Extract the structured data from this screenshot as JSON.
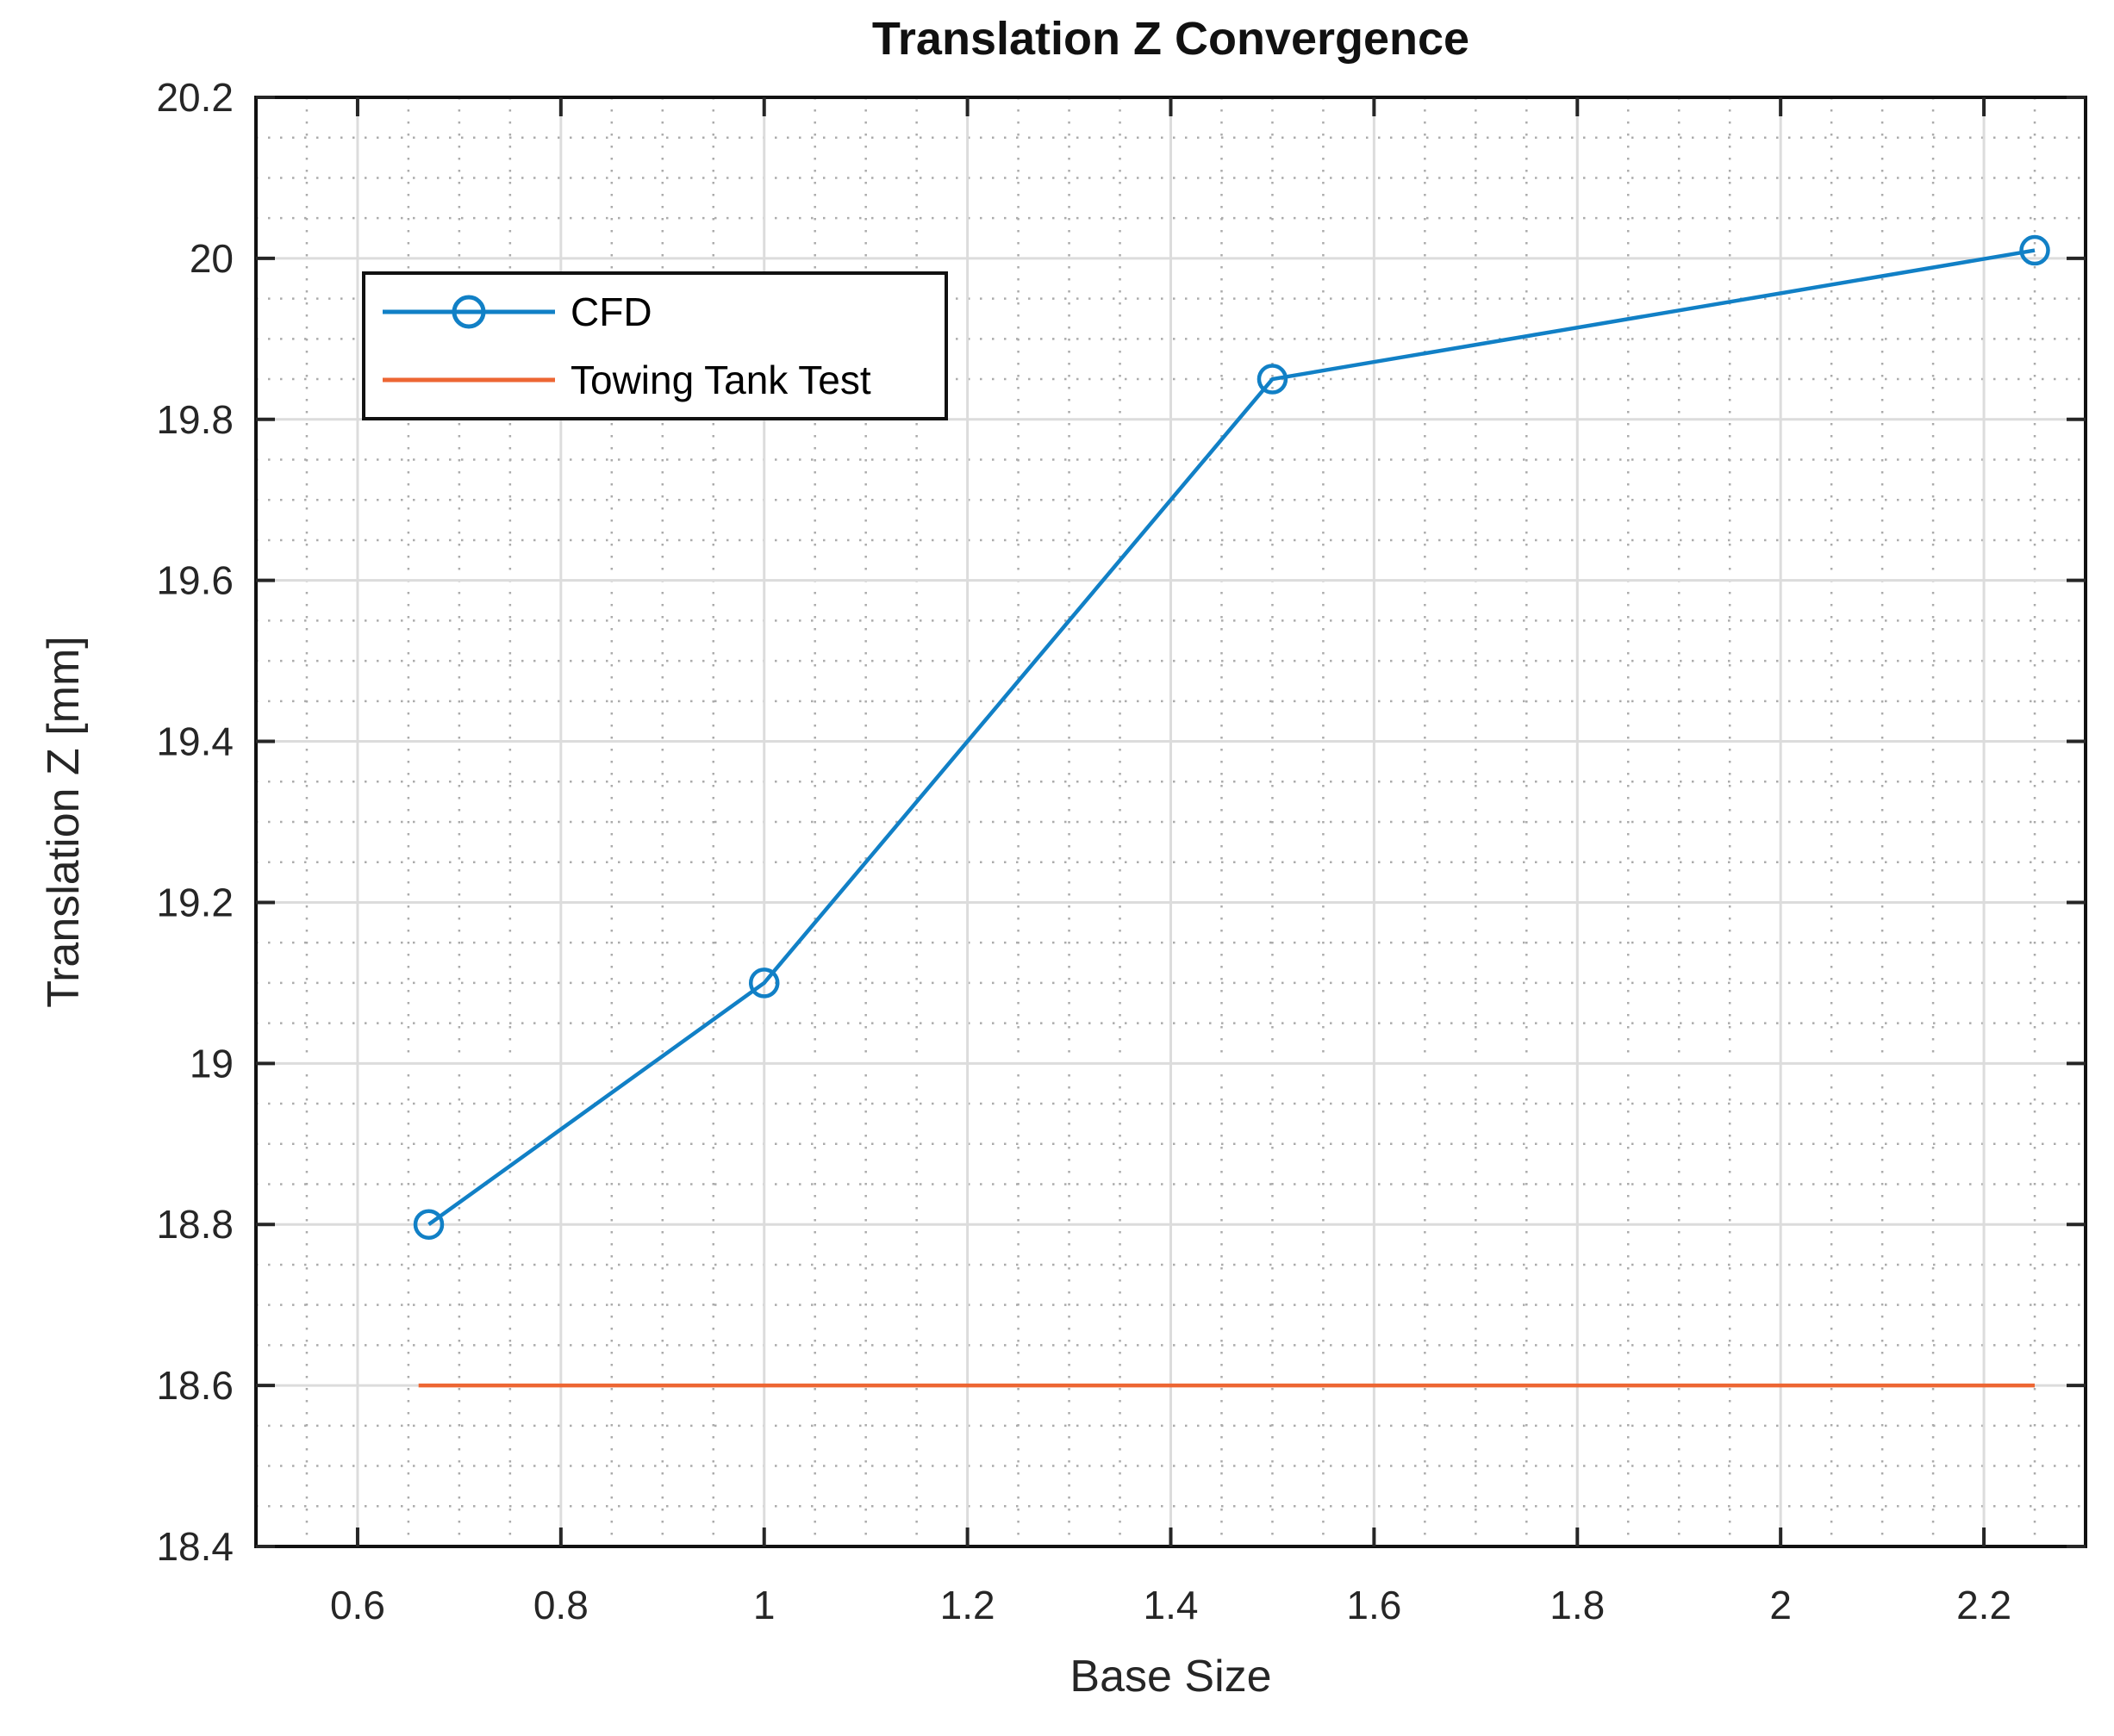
{
  "chart_data": {
    "type": "line",
    "title": "Translation Z Convergence",
    "xlabel": "Base Size",
    "ylabel": "Translation Z [mm]",
    "xlim": [
      0.5,
      2.3
    ],
    "ylim": [
      18.4,
      20.2
    ],
    "xticks": [
      0.6,
      0.8,
      1,
      1.2,
      1.4,
      1.6,
      1.8,
      2,
      2.2
    ],
    "xtick_labels": [
      "0.6",
      "0.8",
      "1",
      "1.2",
      "1.4",
      "1.6",
      "1.8",
      "2",
      "2.2"
    ],
    "yticks": [
      18.4,
      18.6,
      18.8,
      19,
      19.2,
      19.4,
      19.6,
      19.8,
      20,
      20.2
    ],
    "ytick_labels": [
      "18.4",
      "18.6",
      "18.8",
      "19",
      "19.2",
      "19.4",
      "19.6",
      "19.8",
      "20",
      "20.2"
    ],
    "grid": true,
    "minor_grid": true,
    "minor_step": 0.05,
    "legend_position": "upper-left-inside",
    "series": [
      {
        "name": "CFD",
        "type": "line",
        "marker": "circle",
        "color": "#1180c6",
        "x": [
          0.67,
          1.0,
          1.5,
          2.25
        ],
        "y": [
          18.8,
          19.1,
          19.85,
          20.01
        ]
      },
      {
        "name": "Towing Tank Test",
        "type": "line",
        "marker": "none",
        "color": "#ed6633",
        "x": [
          0.66,
          2.25
        ],
        "y": [
          18.6,
          18.6
        ]
      }
    ]
  },
  "colors": {
    "major_grid": "#dcdcdc",
    "minor_grid": "#ababab",
    "axis_box": "#111111",
    "tick": "#262626",
    "tick_label": "#262626"
  }
}
